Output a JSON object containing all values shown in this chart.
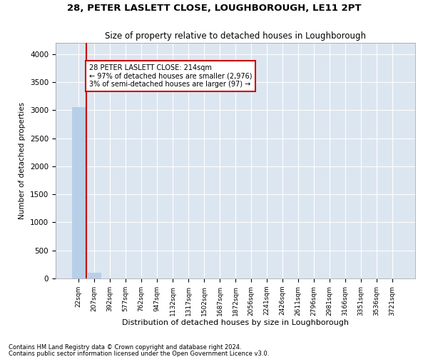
{
  "title": "28, PETER LASLETT CLOSE, LOUGHBOROUGH, LE11 2PT",
  "subtitle": "Size of property relative to detached houses in Loughborough",
  "xlabel": "Distribution of detached houses by size in Loughborough",
  "ylabel": "Number of detached properties",
  "annotation_line1": "28 PETER LASLETT CLOSE: 214sqm",
  "annotation_line2": "← 97% of detached houses are smaller (2,976)",
  "annotation_line3": "3% of semi-detached houses are larger (97) →",
  "footnote1": "Contains HM Land Registry data © Crown copyright and database right 2024.",
  "footnote2": "Contains public sector information licensed under the Open Government Licence v3.0.",
  "bar_labels": [
    "22sqm",
    "207sqm",
    "392sqm",
    "577sqm",
    "762sqm",
    "947sqm",
    "1132sqm",
    "1317sqm",
    "1502sqm",
    "1687sqm",
    "1872sqm",
    "2056sqm",
    "2241sqm",
    "2426sqm",
    "2611sqm",
    "2796sqm",
    "2981sqm",
    "3166sqm",
    "3351sqm",
    "3536sqm",
    "3721sqm"
  ],
  "bar_values": [
    3050,
    97,
    0,
    0,
    0,
    0,
    0,
    0,
    0,
    0,
    0,
    0,
    0,
    0,
    0,
    0,
    0,
    0,
    0,
    0,
    0
  ],
  "bar_color": "#b8cfe8",
  "grid_color": "#ffffff",
  "bg_color": "#dce6f1",
  "ylim": [
    0,
    4200
  ],
  "yticks": [
    0,
    500,
    1000,
    1500,
    2000,
    2500,
    3000,
    3500,
    4000
  ],
  "red_line_x": 0.5,
  "annotation_box_color": "#cc0000"
}
